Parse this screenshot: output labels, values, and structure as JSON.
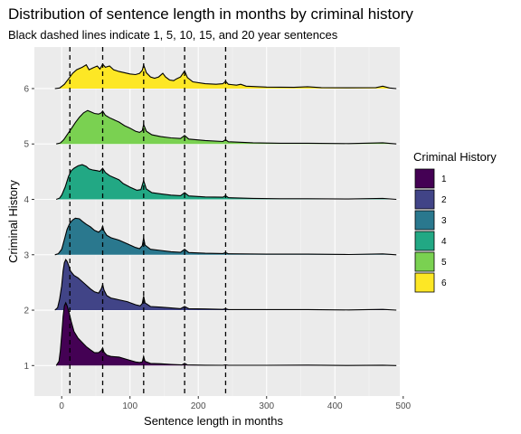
{
  "chart_data": {
    "type": "ridgeline",
    "title": "Distribution of sentence length in months by criminal history",
    "subtitle": "Black dashed lines indicate 1, 5, 10, 15, and 20 year sentences",
    "xlabel": "Sentence length in months",
    "ylabel": "Criminal History",
    "xlim": [
      -40,
      495
    ],
    "ylim": [
      0.45,
      6.75
    ],
    "x_ticks": [
      0,
      100,
      200,
      300,
      400,
      500
    ],
    "y_ticks": [
      1,
      2,
      3,
      4,
      5,
      6
    ],
    "reference_lines_months": [
      12,
      60,
      120,
      180,
      240
    ],
    "grid": true,
    "legend": {
      "title": "Criminal History",
      "position": "right",
      "entries": [
        "1",
        "2",
        "3",
        "4",
        "5",
        "6"
      ]
    },
    "series": [
      {
        "name": "1",
        "color": "#440154",
        "baseline": 1,
        "density": [
          [
            -8,
            0
          ],
          [
            -4,
            0.35
          ],
          [
            -2,
            1.2
          ],
          [
            0,
            2.5
          ],
          [
            2,
            4.0
          ],
          [
            4,
            4.9
          ],
          [
            6,
            5.15
          ],
          [
            8,
            4.9
          ],
          [
            11,
            4.3
          ],
          [
            14,
            3.6
          ],
          [
            18,
            2.8
          ],
          [
            24,
            2.25
          ],
          [
            30,
            1.9
          ],
          [
            36,
            1.55
          ],
          [
            42,
            1.3
          ],
          [
            48,
            1.05
          ],
          [
            54,
            1.05
          ],
          [
            58,
            1.25
          ],
          [
            60,
            1.45
          ],
          [
            62,
            1.1
          ],
          [
            66,
            0.85
          ],
          [
            72,
            0.75
          ],
          [
            84,
            0.7
          ],
          [
            96,
            0.5
          ],
          [
            108,
            0.3
          ],
          [
            114,
            0.25
          ],
          [
            118,
            0.3
          ],
          [
            120,
            0.75
          ],
          [
            122,
            0.35
          ],
          [
            130,
            0.18
          ],
          [
            145,
            0.15
          ],
          [
            160,
            0.1
          ],
          [
            176,
            0.05
          ],
          [
            180,
            0.18
          ],
          [
            184,
            0.05
          ],
          [
            210,
            0.03
          ],
          [
            236,
            0.02
          ],
          [
            240,
            0.06
          ],
          [
            244,
            0.02
          ],
          [
            300,
            0.02
          ],
          [
            360,
            0.04
          ],
          [
            420,
            0.01
          ],
          [
            470,
            0.03
          ],
          [
            490,
            0
          ]
        ]
      },
      {
        "name": "2",
        "color": "#414487",
        "baseline": 2,
        "density": [
          [
            -10,
            0
          ],
          [
            -6,
            0.2
          ],
          [
            -3,
            0.9
          ],
          [
            0,
            2.0
          ],
          [
            2,
            3.2
          ],
          [
            4,
            3.9
          ],
          [
            6,
            4.15
          ],
          [
            8,
            4.0
          ],
          [
            10,
            3.7
          ],
          [
            13,
            3.2
          ],
          [
            18,
            2.85
          ],
          [
            24,
            2.65
          ],
          [
            30,
            2.35
          ],
          [
            36,
            2.05
          ],
          [
            42,
            1.75
          ],
          [
            48,
            1.5
          ],
          [
            54,
            1.4
          ],
          [
            58,
            1.75
          ],
          [
            60,
            2.1
          ],
          [
            62,
            1.65
          ],
          [
            66,
            1.2
          ],
          [
            72,
            1.0
          ],
          [
            84,
            0.85
          ],
          [
            96,
            0.7
          ],
          [
            108,
            0.45
          ],
          [
            115,
            0.35
          ],
          [
            118,
            0.55
          ],
          [
            120,
            1.15
          ],
          [
            122,
            0.6
          ],
          [
            130,
            0.3
          ],
          [
            145,
            0.25
          ],
          [
            160,
            0.18
          ],
          [
            174,
            0.12
          ],
          [
            180,
            0.3
          ],
          [
            186,
            0.12
          ],
          [
            210,
            0.1
          ],
          [
            236,
            0.06
          ],
          [
            240,
            0.12
          ],
          [
            244,
            0.05
          ],
          [
            300,
            0.05
          ],
          [
            360,
            0.05
          ],
          [
            420,
            0.02
          ],
          [
            470,
            0.06
          ],
          [
            490,
            0
          ]
        ]
      },
      {
        "name": "3",
        "color": "#2A788E",
        "baseline": 3,
        "density": [
          [
            -10,
            0
          ],
          [
            -5,
            0.08
          ],
          [
            0,
            0.45
          ],
          [
            4,
            1.25
          ],
          [
            8,
            2.1
          ],
          [
            12,
            2.6
          ],
          [
            16,
            2.85
          ],
          [
            20,
            3.0
          ],
          [
            26,
            2.95
          ],
          [
            30,
            2.75
          ],
          [
            36,
            2.5
          ],
          [
            42,
            2.3
          ],
          [
            48,
            2.0
          ],
          [
            54,
            1.85
          ],
          [
            58,
            2.05
          ],
          [
            60,
            2.35
          ],
          [
            62,
            1.95
          ],
          [
            66,
            1.6
          ],
          [
            72,
            1.4
          ],
          [
            84,
            1.2
          ],
          [
            96,
            0.9
          ],
          [
            108,
            0.6
          ],
          [
            114,
            0.5
          ],
          [
            118,
            0.75
          ],
          [
            120,
            1.4
          ],
          [
            122,
            0.8
          ],
          [
            130,
            0.45
          ],
          [
            145,
            0.35
          ],
          [
            160,
            0.25
          ],
          [
            174,
            0.2
          ],
          [
            180,
            0.45
          ],
          [
            186,
            0.18
          ],
          [
            210,
            0.12
          ],
          [
            236,
            0.1
          ],
          [
            240,
            0.18
          ],
          [
            244,
            0.08
          ],
          [
            300,
            0.05
          ],
          [
            360,
            0.05
          ],
          [
            420,
            0.02
          ],
          [
            470,
            0.07
          ],
          [
            490,
            0
          ]
        ]
      },
      {
        "name": "4",
        "color": "#22A884",
        "baseline": 4,
        "density": [
          [
            -8,
            0
          ],
          [
            -3,
            0.1
          ],
          [
            0,
            0.35
          ],
          [
            5,
            1.0
          ],
          [
            10,
            1.9
          ],
          [
            14,
            2.35
          ],
          [
            18,
            2.55
          ],
          [
            24,
            2.75
          ],
          [
            30,
            2.85
          ],
          [
            36,
            2.7
          ],
          [
            40,
            2.5
          ],
          [
            46,
            2.4
          ],
          [
            52,
            2.35
          ],
          [
            56,
            2.3
          ],
          [
            60,
            2.55
          ],
          [
            64,
            2.2
          ],
          [
            70,
            1.95
          ],
          [
            76,
            1.8
          ],
          [
            84,
            1.6
          ],
          [
            90,
            1.3
          ],
          [
            100,
            1.0
          ],
          [
            110,
            0.75
          ],
          [
            116,
            0.8
          ],
          [
            120,
            1.55
          ],
          [
            124,
            0.85
          ],
          [
            132,
            0.55
          ],
          [
            145,
            0.45
          ],
          [
            160,
            0.35
          ],
          [
            174,
            0.3
          ],
          [
            180,
            0.55
          ],
          [
            186,
            0.28
          ],
          [
            210,
            0.2
          ],
          [
            236,
            0.18
          ],
          [
            240,
            0.3
          ],
          [
            244,
            0.14
          ],
          [
            280,
            0.08
          ],
          [
            320,
            0.05
          ],
          [
            360,
            0.05
          ],
          [
            420,
            0.03
          ],
          [
            470,
            0.08
          ],
          [
            490,
            0
          ]
        ]
      },
      {
        "name": "5",
        "color": "#7AD151",
        "baseline": 5,
        "density": [
          [
            -8,
            0
          ],
          [
            -2,
            0.08
          ],
          [
            3,
            0.35
          ],
          [
            8,
            0.75
          ],
          [
            14,
            1.25
          ],
          [
            20,
            1.75
          ],
          [
            26,
            2.2
          ],
          [
            32,
            2.55
          ],
          [
            38,
            2.75
          ],
          [
            42,
            2.65
          ],
          [
            48,
            2.5
          ],
          [
            54,
            2.45
          ],
          [
            58,
            2.55
          ],
          [
            60,
            2.7
          ],
          [
            64,
            2.35
          ],
          [
            70,
            2.15
          ],
          [
            76,
            2.0
          ],
          [
            84,
            1.8
          ],
          [
            92,
            1.5
          ],
          [
            100,
            1.3
          ],
          [
            108,
            1.05
          ],
          [
            114,
            0.95
          ],
          [
            118,
            1.1
          ],
          [
            120,
            1.6
          ],
          [
            124,
            1.05
          ],
          [
            132,
            0.75
          ],
          [
            145,
            0.6
          ],
          [
            160,
            0.5
          ],
          [
            174,
            0.45
          ],
          [
            180,
            0.7
          ],
          [
            186,
            0.4
          ],
          [
            210,
            0.28
          ],
          [
            236,
            0.2
          ],
          [
            240,
            0.35
          ],
          [
            244,
            0.18
          ],
          [
            280,
            0.1
          ],
          [
            320,
            0.06
          ],
          [
            360,
            0.06
          ],
          [
            420,
            0.03
          ],
          [
            470,
            0.1
          ],
          [
            490,
            0
          ]
        ]
      },
      {
        "name": "6",
        "color": "#FDE725",
        "baseline": 6,
        "density": [
          [
            -10,
            0
          ],
          [
            -3,
            0.05
          ],
          [
            4,
            0.35
          ],
          [
            10,
            0.8
          ],
          [
            16,
            1.25
          ],
          [
            22,
            1.55
          ],
          [
            30,
            1.75
          ],
          [
            36,
            1.95
          ],
          [
            40,
            1.55
          ],
          [
            46,
            1.7
          ],
          [
            52,
            1.85
          ],
          [
            56,
            1.6
          ],
          [
            60,
            2.0
          ],
          [
            64,
            1.75
          ],
          [
            70,
            1.85
          ],
          [
            76,
            1.55
          ],
          [
            84,
            1.4
          ],
          [
            92,
            1.3
          ],
          [
            100,
            1.2
          ],
          [
            108,
            1.15
          ],
          [
            114,
            1.25
          ],
          [
            118,
            1.5
          ],
          [
            120,
            1.95
          ],
          [
            124,
            1.3
          ],
          [
            130,
            0.95
          ],
          [
            136,
            0.85
          ],
          [
            142,
            0.95
          ],
          [
            148,
            1.25
          ],
          [
            152,
            0.95
          ],
          [
            158,
            0.7
          ],
          [
            164,
            0.65
          ],
          [
            168,
            0.8
          ],
          [
            174,
            0.95
          ],
          [
            180,
            1.45
          ],
          [
            184,
            0.9
          ],
          [
            192,
            0.55
          ],
          [
            210,
            0.4
          ],
          [
            226,
            0.35
          ],
          [
            236,
            0.4
          ],
          [
            240,
            0.6
          ],
          [
            244,
            0.35
          ],
          [
            256,
            0.28
          ],
          [
            262,
            0.35
          ],
          [
            270,
            0.2
          ],
          [
            300,
            0.12
          ],
          [
            340,
            0.1
          ],
          [
            360,
            0.15
          ],
          [
            380,
            0.08
          ],
          [
            420,
            0.06
          ],
          [
            460,
            0.08
          ],
          [
            470,
            0.2
          ],
          [
            480,
            0.05
          ],
          [
            490,
            0
          ]
        ]
      }
    ]
  }
}
